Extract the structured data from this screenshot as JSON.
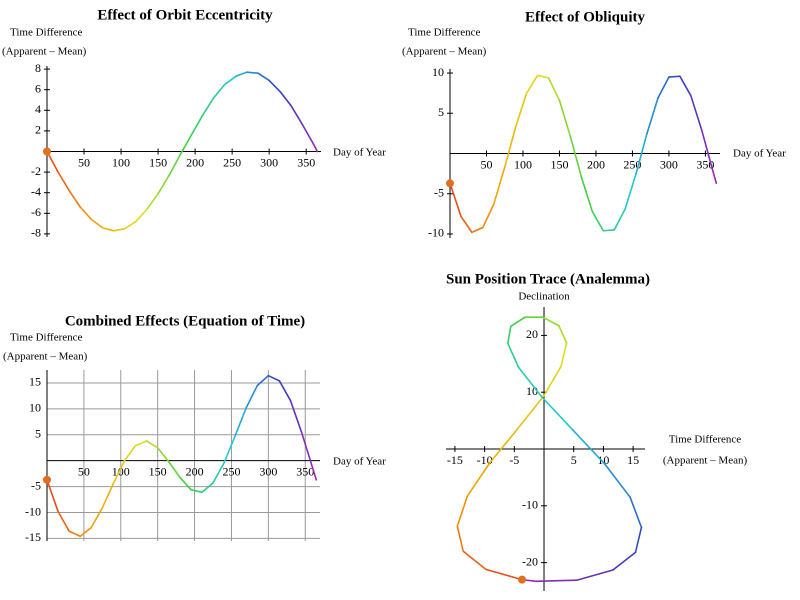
{
  "chart_data": [
    {
      "type": "line",
      "title": "Effect of Orbit Eccentricity",
      "y_label": [
        "Time Difference",
        "(Apparent – Mean)"
      ],
      "x_label": "Day of Year",
      "x": [
        0,
        15,
        30,
        45,
        60,
        75,
        90,
        105,
        120,
        135,
        150,
        165,
        180,
        195,
        210,
        225,
        240,
        255,
        270,
        285,
        300,
        315,
        330,
        345,
        360,
        365
      ],
      "values": [
        0,
        -2.0,
        -3.8,
        -5.4,
        -6.6,
        -7.4,
        -7.7,
        -7.5,
        -6.8,
        -5.6,
        -4.1,
        -2.3,
        -0.3,
        1.6,
        3.5,
        5.2,
        6.5,
        7.3,
        7.7,
        7.6,
        6.9,
        5.8,
        4.4,
        2.6,
        0.7,
        0
      ],
      "xlim": [
        0,
        370
      ],
      "ylim": [
        -8.3,
        8.3
      ],
      "xticks": [
        50,
        100,
        150,
        200,
        250,
        300,
        350
      ],
      "yticks": [
        -8,
        -6,
        -4,
        -2,
        2,
        4,
        6,
        8
      ],
      "grid": false,
      "colors": [
        "#e8401c",
        "#f0a000",
        "#e0e020",
        "#40d040",
        "#20c8d8",
        "#3040c8",
        "#b020b0"
      ],
      "marker_color": "#e07020"
    },
    {
      "type": "line",
      "title": "Effect of Obliquity",
      "y_label": [
        "Time Difference",
        "(Apparent – Mean)"
      ],
      "x_label": "Day of Year",
      "x": [
        0,
        15,
        30,
        45,
        60,
        75,
        90,
        105,
        120,
        135,
        150,
        165,
        180,
        195,
        210,
        225,
        240,
        255,
        270,
        285,
        300,
        315,
        330,
        345,
        360,
        365
      ],
      "values": [
        -3.7,
        -7.8,
        -9.8,
        -9.2,
        -6.3,
        -1.7,
        3.3,
        7.5,
        9.7,
        9.4,
        6.6,
        2.1,
        -2.9,
        -7.2,
        -9.6,
        -9.5,
        -6.9,
        -2.5,
        2.5,
        6.9,
        9.5,
        9.6,
        7.2,
        2.9,
        -2.1,
        -3.7
      ],
      "xlim": [
        0,
        370
      ],
      "ylim": [
        -10.5,
        10.5
      ],
      "xticks": [
        50,
        100,
        150,
        200,
        250,
        300,
        350
      ],
      "yticks": [
        -10,
        -5,
        5,
        10
      ],
      "grid": false,
      "colors": [
        "#e8401c",
        "#f0a000",
        "#e0e020",
        "#40d040",
        "#20c8d8",
        "#3040c8",
        "#b020b0"
      ],
      "marker_color": "#e07020"
    },
    {
      "type": "line",
      "title": "Combined Effects (Equation of Time)",
      "y_label": [
        "Time Difference",
        "(Apparent – Mean)"
      ],
      "x_label": "Day of Year",
      "x": [
        0,
        15,
        30,
        45,
        60,
        75,
        90,
        105,
        120,
        135,
        150,
        165,
        180,
        195,
        210,
        225,
        240,
        255,
        270,
        285,
        300,
        315,
        330,
        345,
        360,
        365
      ],
      "values": [
        -3.7,
        -9.8,
        -13.6,
        -14.6,
        -12.9,
        -9.1,
        -4.4,
        0,
        2.9,
        3.8,
        2.5,
        -0.2,
        -3.2,
        -5.6,
        -6.1,
        -4.3,
        -0.4,
        4.8,
        10.2,
        14.5,
        16.4,
        15.4,
        11.6,
        5.5,
        -1.4,
        -3.7
      ],
      "xlim": [
        0,
        370
      ],
      "ylim": [
        -15.5,
        17.5
      ],
      "xticks": [
        50,
        100,
        150,
        200,
        250,
        300,
        350
      ],
      "yticks": [
        -15,
        -10,
        -5,
        5,
        10,
        15
      ],
      "grid": true,
      "colors": [
        "#e8401c",
        "#f0a000",
        "#e0e020",
        "#40d040",
        "#20c8d8",
        "#3040c8",
        "#b020b0"
      ],
      "marker_color": "#e07020"
    },
    {
      "type": "line",
      "title": "Sun Position Trace (Analemma)",
      "y_label": "Declination",
      "x_label": [
        "Time Difference",
        "(Apparent – Mean)"
      ],
      "x": [
        -3.7,
        -9.8,
        -13.6,
        -14.6,
        -12.9,
        -9.1,
        -4.4,
        0,
        2.9,
        3.8,
        2.5,
        -0.2,
        -3.2,
        -5.6,
        -6.1,
        -4.3,
        -0.4,
        4.8,
        10.2,
        14.5,
        16.4,
        15.4,
        11.6,
        5.5,
        -1.4,
        -3.7
      ],
      "values": [
        -23.0,
        -21.2,
        -18.0,
        -13.6,
        -8.3,
        -2.4,
        3.6,
        9.4,
        14.6,
        18.7,
        21.7,
        23.2,
        23.2,
        21.6,
        18.6,
        14.4,
        9.2,
        3.4,
        -2.6,
        -8.5,
        -13.8,
        -18.2,
        -21.3,
        -23.1,
        -23.3,
        -23.0
      ],
      "xlim": [
        -16.5,
        17
      ],
      "ylim": [
        -25,
        25
      ],
      "xticks": [
        -15,
        -10,
        -5,
        5,
        10,
        15
      ],
      "yticks": [
        -20,
        -10,
        10,
        20
      ],
      "grid": false,
      "colors": [
        "#e8401c",
        "#f0a000",
        "#e0e020",
        "#40d040",
        "#20c8d8",
        "#3040c8",
        "#b020b0"
      ],
      "marker_color": "#e07020"
    }
  ]
}
